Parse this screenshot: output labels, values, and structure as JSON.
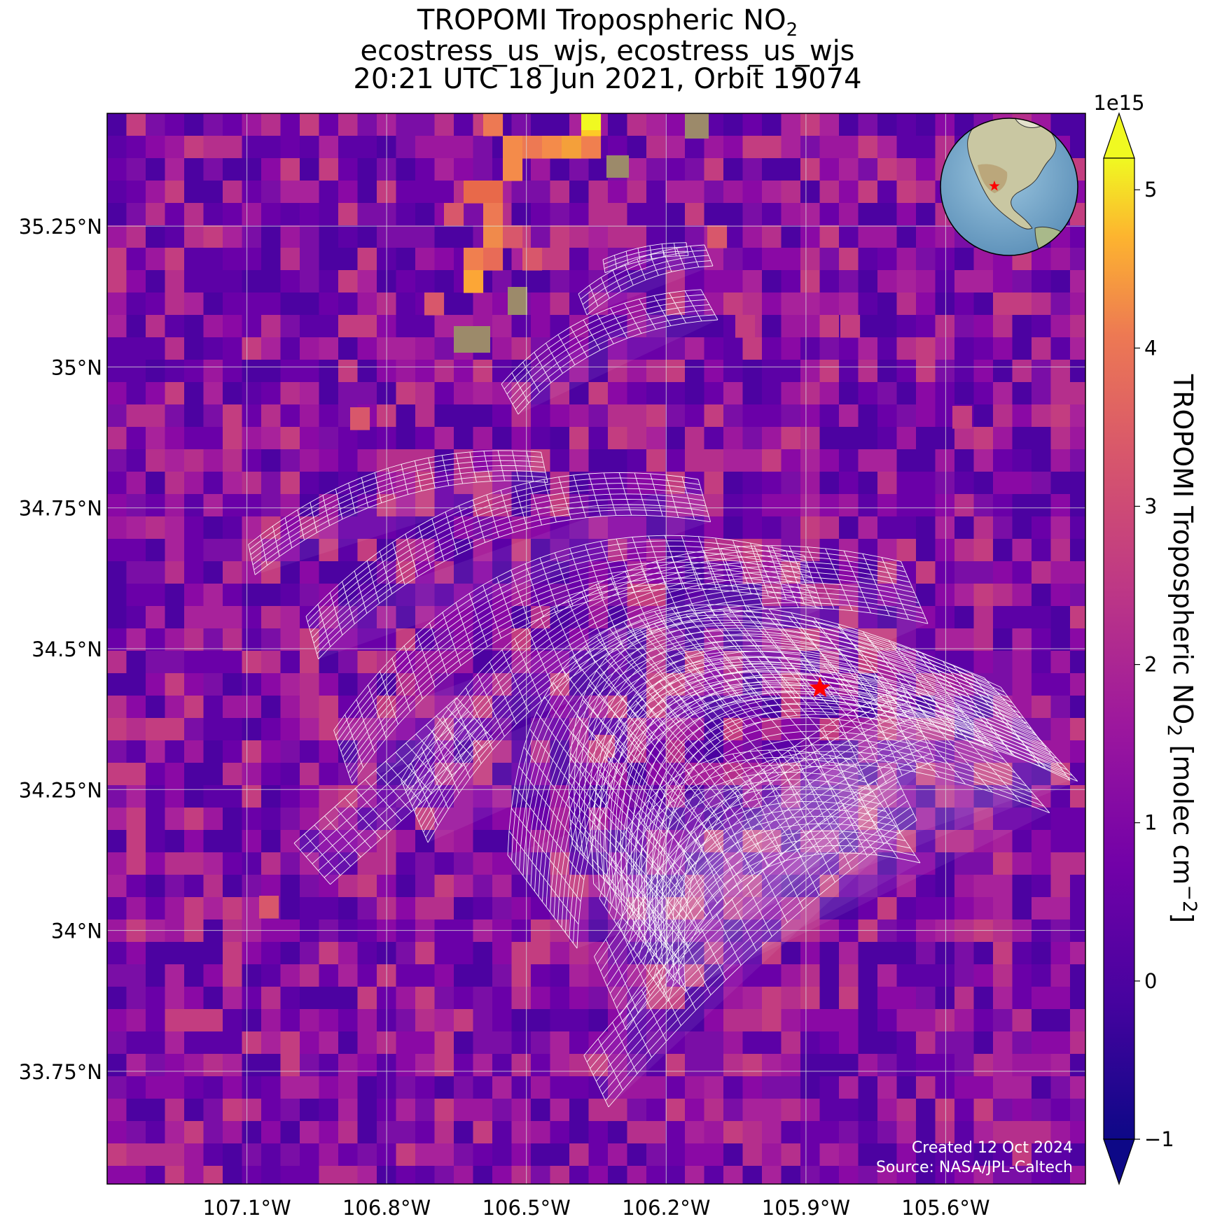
{
  "header": {
    "title_prefix": "TROPOMI Tropospheric NO",
    "title_sub": "2",
    "line2": "ecostress_us_wjs, ecostress_us_wjs",
    "line3": "20:21 UTC 18 Jun 2021, Orbit 19074"
  },
  "map": {
    "lon_range": [
      -107.4,
      -105.3
    ],
    "lat_range": [
      33.55,
      35.45
    ],
    "x_tick_labels": [
      "107.1°W",
      "106.8°W",
      "106.5°W",
      "106.2°W",
      "105.9°W",
      "105.6°W"
    ],
    "x_tick_values": [
      -107.1,
      -106.8,
      -106.5,
      -106.2,
      -105.9,
      -105.6
    ],
    "y_tick_labels": [
      "35.25°N",
      "35°N",
      "34.75°N",
      "34.5°N",
      "34.25°N",
      "34°N",
      "33.75°N"
    ],
    "y_tick_values": [
      35.25,
      35.0,
      34.75,
      34.5,
      34.25,
      34.0,
      33.75
    ],
    "gridlines": true,
    "site_marker": {
      "lon": -105.87,
      "lat": 34.43,
      "color": "#ff0000",
      "icon": "star-icon"
    },
    "inset": {
      "type": "globe",
      "region": "North America",
      "marker_color": "#ff0000"
    },
    "credit_line1": "Created 12 Oct 2024",
    "credit_line2": "Source: NASA/JPL-Caltech",
    "footprint_color": "#ffffff"
  },
  "colorbar": {
    "scale_label": "1e15",
    "tick_labels": [
      "−1",
      "0",
      "1",
      "2",
      "3",
      "4",
      "5"
    ],
    "tick_values": [
      -1,
      0,
      1,
      2,
      3,
      4,
      5
    ],
    "range": [
      -1.0,
      5.2
    ],
    "label_prefix": "TROPOMI Tropospheric NO",
    "label_sub": "2",
    "label_suffix": " [molec cm",
    "label_sup": "−2",
    "label_end": "]",
    "colormap": "plasma"
  }
}
